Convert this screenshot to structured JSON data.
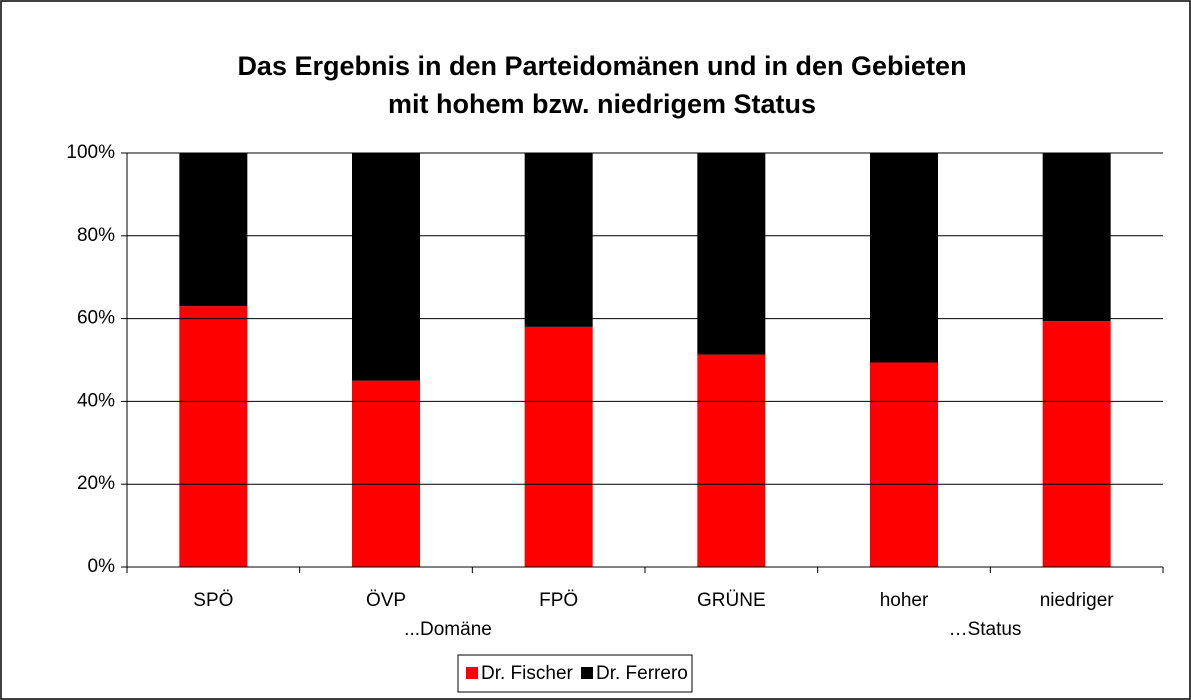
{
  "chart_data": {
    "type": "stacked_bar",
    "title": [
      "Das Ergebnis in den Parteidomänen und in den Gebieten",
      "mit hohem bzw. niedrigem Status"
    ],
    "categories": [
      "SPÖ",
      "ÖVP",
      "FPÖ",
      "GRÜNE",
      "hoher",
      "niedriger"
    ],
    "group_labels": [
      "...Domäne",
      "…Status"
    ],
    "series": [
      {
        "name": "Dr. Fischer",
        "color": "#ff0000",
        "values": [
          63,
          45,
          58,
          51.3,
          49.4,
          59.4
        ]
      },
      {
        "name": "Dr. Ferrero",
        "color": "#000000",
        "values": [
          37,
          55,
          42,
          48.7,
          50.6,
          40.6
        ]
      }
    ],
    "ylim": [
      0,
      100
    ],
    "yticks": [
      {
        "value": 0,
        "label": "0%"
      },
      {
        "value": 20,
        "label": "20%"
      },
      {
        "value": 40,
        "label": "40%"
      },
      {
        "value": 60,
        "label": "60%"
      },
      {
        "value": 80,
        "label": "80%"
      },
      {
        "value": 100,
        "label": "100%"
      }
    ],
    "grid": true
  }
}
